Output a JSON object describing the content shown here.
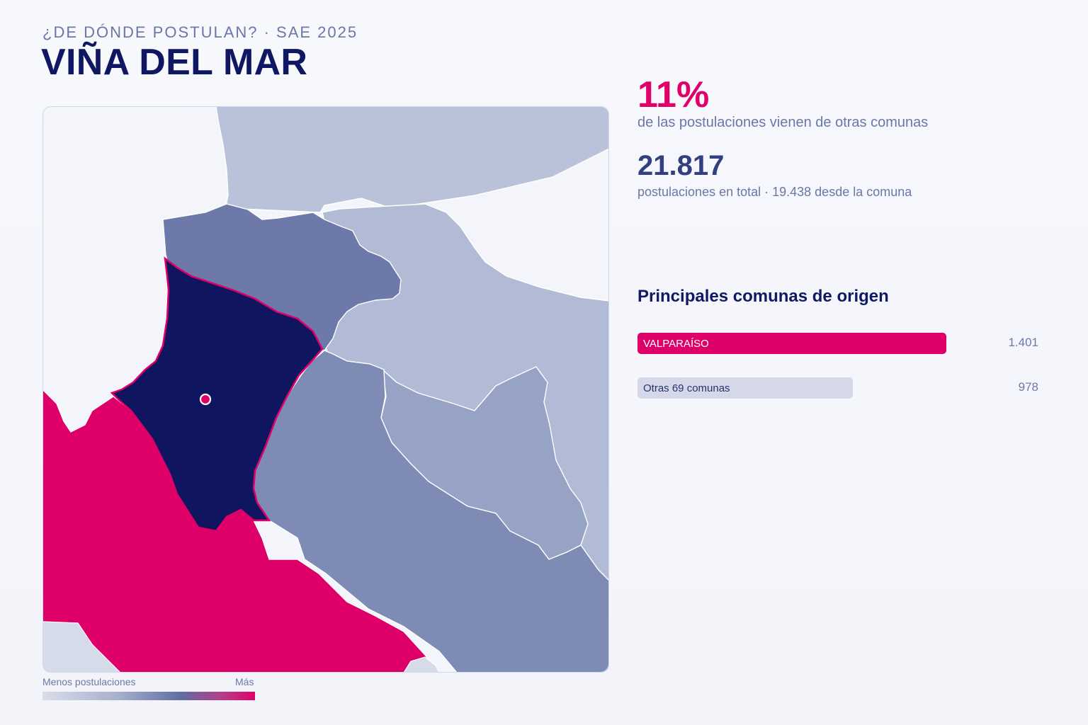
{
  "header": {
    "kicker": "¿DE DÓNDE POSTULAN? · SAE 2025",
    "title": "VIÑA DEL MAR"
  },
  "stats": {
    "percent_from_other": "11%",
    "percent_caption": "de las postulaciones vienen de otras comunas",
    "total_applications": "21.817",
    "total_caption": "postulaciones en total · 19.438 desde la comuna"
  },
  "origins": {
    "heading": "Principales comunas de origen",
    "items": [
      {
        "label": "VALPARAÍSO",
        "value": "1.401",
        "bar_fraction": 1.0
      },
      {
        "label": "Otras 69 comunas",
        "value": "978",
        "bar_fraction": 0.698
      }
    ]
  },
  "legend": {
    "low_label": "Menos postulaciones",
    "high_label": "Más"
  },
  "colors": {
    "highlight": "#E1006A",
    "selected_comuna": "#0F165F",
    "title": "#0F1763",
    "secondary_text": "#6A77A8",
    "low_fill": "#D4D8E8",
    "mid_fill": "#7E8BB5",
    "high_fill": "#6A77A8"
  }
}
